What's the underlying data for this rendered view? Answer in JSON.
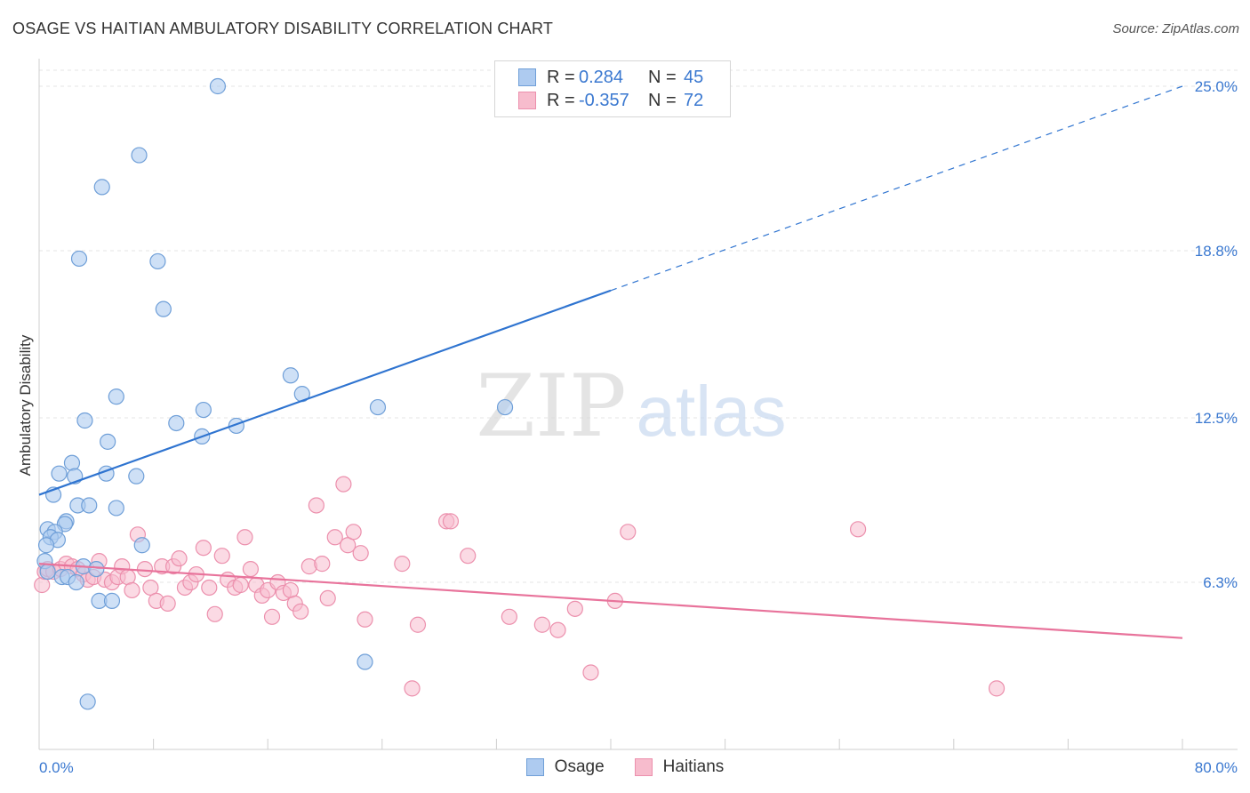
{
  "header": {
    "title": "OSAGE VS HAITIAN AMBULATORY DISABILITY CORRELATION CHART",
    "source": "Source: ZipAtlas.com"
  },
  "legend": {
    "rows": [
      {
        "r_label": "R =",
        "r_value": "0.284",
        "n_label": "N =",
        "n_value": "45"
      },
      {
        "r_label": "R =",
        "r_value": "-0.357",
        "n_label": "N =",
        "n_value": "72"
      }
    ]
  },
  "bottom_legend": {
    "osage": "Osage",
    "haitians": "Haitians"
  },
  "watermark": {
    "zip": "ZIP",
    "atlas": "atlas"
  },
  "colors": {
    "osage_fill": "#aecbf0",
    "osage_stroke": "#6f9fd8",
    "osage_line": "#2f74d0",
    "haitian_fill": "#f7bccd",
    "haitian_stroke": "#ec90ad",
    "haitian_line": "#e8739b",
    "tick_label": "#3a78d0",
    "grid": "#e4e4e4"
  },
  "chart_data": {
    "type": "scatter",
    "title": "OSAGE VS HAITIAN AMBULATORY DISABILITY CORRELATION CHART",
    "xlabel": "",
    "ylabel": "Ambulatory Disability",
    "xlim": [
      0,
      80
    ],
    "ylim": [
      0,
      25
    ],
    "x_tick_labels": [
      "0.0%",
      "80.0%"
    ],
    "y_ticks": [
      6.3,
      12.5,
      18.8,
      25.0
    ],
    "y_tick_labels": [
      "6.3%",
      "12.5%",
      "18.8%",
      "25.0%"
    ],
    "grid": true,
    "legend_position": "top-center",
    "series": [
      {
        "name": "Osage",
        "r": 0.284,
        "n": 45,
        "trend": {
          "x0": 0,
          "y0": 9.6,
          "x1": 40,
          "y1": 17.3,
          "dashed_to": [
            80,
            25.0
          ]
        },
        "points": [
          [
            12.5,
            25.0
          ],
          [
            7.0,
            22.4
          ],
          [
            4.4,
            21.2
          ],
          [
            2.8,
            18.5
          ],
          [
            8.3,
            18.4
          ],
          [
            8.7,
            16.6
          ],
          [
            17.6,
            14.1
          ],
          [
            18.4,
            13.4
          ],
          [
            5.4,
            13.3
          ],
          [
            23.7,
            12.9
          ],
          [
            11.5,
            12.8
          ],
          [
            32.6,
            12.9
          ],
          [
            3.2,
            12.4
          ],
          [
            9.6,
            12.3
          ],
          [
            13.8,
            12.2
          ],
          [
            11.4,
            11.8
          ],
          [
            4.8,
            11.6
          ],
          [
            2.3,
            10.8
          ],
          [
            1.4,
            10.4
          ],
          [
            2.5,
            10.3
          ],
          [
            4.7,
            10.4
          ],
          [
            6.8,
            10.3
          ],
          [
            1.0,
            9.6
          ],
          [
            2.7,
            9.2
          ],
          [
            3.5,
            9.2
          ],
          [
            5.4,
            9.1
          ],
          [
            1.9,
            8.6
          ],
          [
            1.8,
            8.5
          ],
          [
            0.6,
            8.3
          ],
          [
            1.1,
            8.2
          ],
          [
            0.8,
            8.0
          ],
          [
            1.3,
            7.9
          ],
          [
            0.5,
            7.7
          ],
          [
            7.2,
            7.7
          ],
          [
            0.4,
            7.1
          ],
          [
            3.1,
            6.9
          ],
          [
            4.0,
            6.8
          ],
          [
            0.6,
            6.7
          ],
          [
            1.6,
            6.5
          ],
          [
            2.0,
            6.5
          ],
          [
            2.6,
            6.3
          ],
          [
            4.2,
            5.6
          ],
          [
            5.1,
            5.6
          ],
          [
            22.8,
            3.3
          ],
          [
            3.4,
            1.8
          ]
        ]
      },
      {
        "name": "Haitians",
        "r": -0.357,
        "n": 72,
        "trend": {
          "x0": 0,
          "y0": 7.0,
          "x1": 80,
          "y1": 4.2
        },
        "points": [
          [
            0.2,
            6.2
          ],
          [
            0.4,
            6.7
          ],
          [
            0.6,
            6.8
          ],
          [
            1.0,
            6.7
          ],
          [
            1.5,
            6.8
          ],
          [
            1.9,
            7.0
          ],
          [
            2.3,
            6.9
          ],
          [
            2.7,
            6.8
          ],
          [
            3.1,
            6.6
          ],
          [
            3.4,
            6.4
          ],
          [
            3.8,
            6.5
          ],
          [
            4.2,
            7.1
          ],
          [
            4.6,
            6.4
          ],
          [
            5.1,
            6.3
          ],
          [
            5.5,
            6.5
          ],
          [
            5.8,
            6.9
          ],
          [
            6.2,
            6.5
          ],
          [
            6.5,
            6.0
          ],
          [
            6.9,
            8.1
          ],
          [
            7.4,
            6.8
          ],
          [
            7.8,
            6.1
          ],
          [
            8.2,
            5.6
          ],
          [
            8.6,
            6.9
          ],
          [
            9.0,
            5.5
          ],
          [
            9.4,
            6.9
          ],
          [
            9.8,
            7.2
          ],
          [
            10.2,
            6.1
          ],
          [
            10.6,
            6.3
          ],
          [
            11.0,
            6.6
          ],
          [
            11.5,
            7.6
          ],
          [
            11.9,
            6.1
          ],
          [
            12.3,
            5.1
          ],
          [
            12.8,
            7.3
          ],
          [
            13.2,
            6.4
          ],
          [
            13.7,
            6.1
          ],
          [
            14.1,
            6.2
          ],
          [
            14.4,
            8.0
          ],
          [
            14.8,
            6.8
          ],
          [
            15.2,
            6.2
          ],
          [
            15.6,
            5.8
          ],
          [
            16.0,
            6.0
          ],
          [
            16.3,
            5.0
          ],
          [
            16.7,
            6.3
          ],
          [
            17.1,
            5.9
          ],
          [
            17.6,
            6.0
          ],
          [
            17.9,
            5.5
          ],
          [
            18.3,
            5.2
          ],
          [
            18.9,
            6.9
          ],
          [
            19.4,
            9.2
          ],
          [
            19.8,
            7.0
          ],
          [
            20.2,
            5.7
          ],
          [
            20.7,
            8.0
          ],
          [
            21.3,
            10.0
          ],
          [
            21.6,
            7.7
          ],
          [
            22.0,
            8.2
          ],
          [
            22.5,
            7.4
          ],
          [
            22.8,
            4.9
          ],
          [
            25.4,
            7.0
          ],
          [
            26.5,
            4.7
          ],
          [
            28.5,
            8.6
          ],
          [
            28.8,
            8.6
          ],
          [
            30.0,
            7.3
          ],
          [
            32.9,
            5.0
          ],
          [
            35.2,
            4.7
          ],
          [
            36.3,
            4.5
          ],
          [
            37.5,
            5.3
          ],
          [
            38.6,
            2.9
          ],
          [
            40.3,
            5.6
          ],
          [
            41.2,
            8.2
          ],
          [
            26.1,
            2.3
          ],
          [
            57.3,
            8.3
          ],
          [
            67.0,
            2.3
          ]
        ]
      }
    ]
  }
}
